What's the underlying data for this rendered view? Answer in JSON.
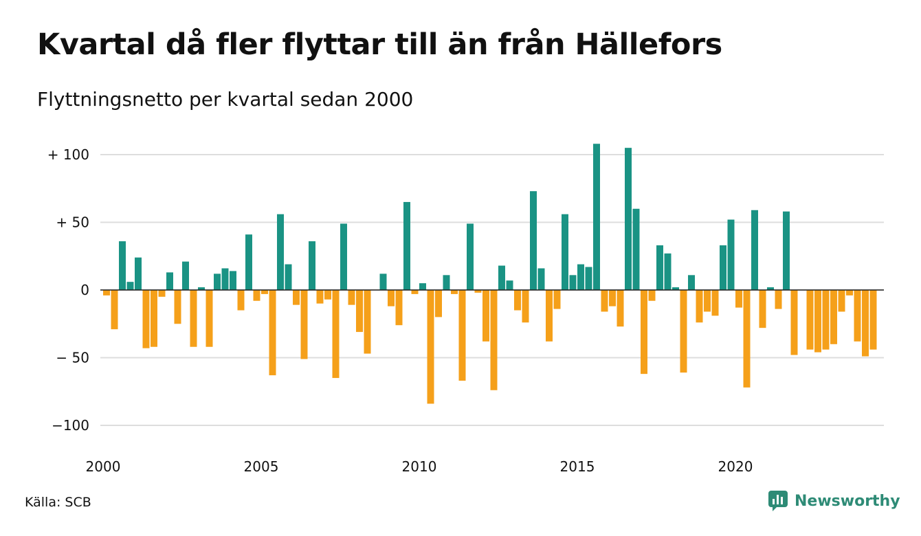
{
  "title": "Kvartal då fler flyttar till än från Hällefors",
  "subtitle": "Flyttningsnetto per kvartal sedan 2000",
  "source": "Källa: SCB",
  "brand": "Newsworthy",
  "colors": {
    "positive": "#1a9384",
    "negative": "#f5a01a",
    "grid": "#dddddd",
    "brand": "#2e8b76"
  },
  "chart_data": {
    "type": "bar",
    "title": "Kvartal då fler flyttar till än från Hällefors",
    "subtitle": "Flyttningsnetto per kvartal sedan 2000",
    "x_start": "2000 Q1",
    "frequency": "quarter",
    "ylim": [
      -110,
      110
    ],
    "y_ticks": [
      100,
      50,
      0,
      -50,
      -100
    ],
    "y_tick_labels": [
      "+ 100",
      "+  50",
      "0",
      "− 50",
      "−100"
    ],
    "x_ticks": [
      "2000",
      "2005",
      "2010",
      "2015",
      "2020"
    ],
    "grid": true,
    "values": [
      -4,
      -29,
      36,
      6,
      24,
      -43,
      -42,
      -5,
      13,
      -25,
      21,
      -42,
      2,
      -42,
      12,
      16,
      14,
      -15,
      41,
      -8,
      -3,
      -63,
      56,
      19,
      -11,
      -51,
      36,
      -10,
      -7,
      -65,
      49,
      -11,
      -31,
      -47,
      0,
      12,
      -12,
      -26,
      65,
      -3,
      5,
      -84,
      -20,
      11,
      -3,
      -67,
      49,
      -2,
      -38,
      -74,
      18,
      7,
      -15,
      -24,
      73,
      16,
      -38,
      -14,
      56,
      11,
      19,
      17,
      108,
      -16,
      -12,
      -27,
      105,
      60,
      -62,
      -8,
      33,
      27,
      2,
      -61,
      11,
      -24,
      -16,
      -19,
      33,
      52,
      -13,
      -72,
      59,
      -28,
      2,
      -14,
      58,
      -48,
      0,
      -44,
      -46,
      -44,
      -40,
      -16,
      -4,
      -38,
      -49,
      -44
    ]
  }
}
